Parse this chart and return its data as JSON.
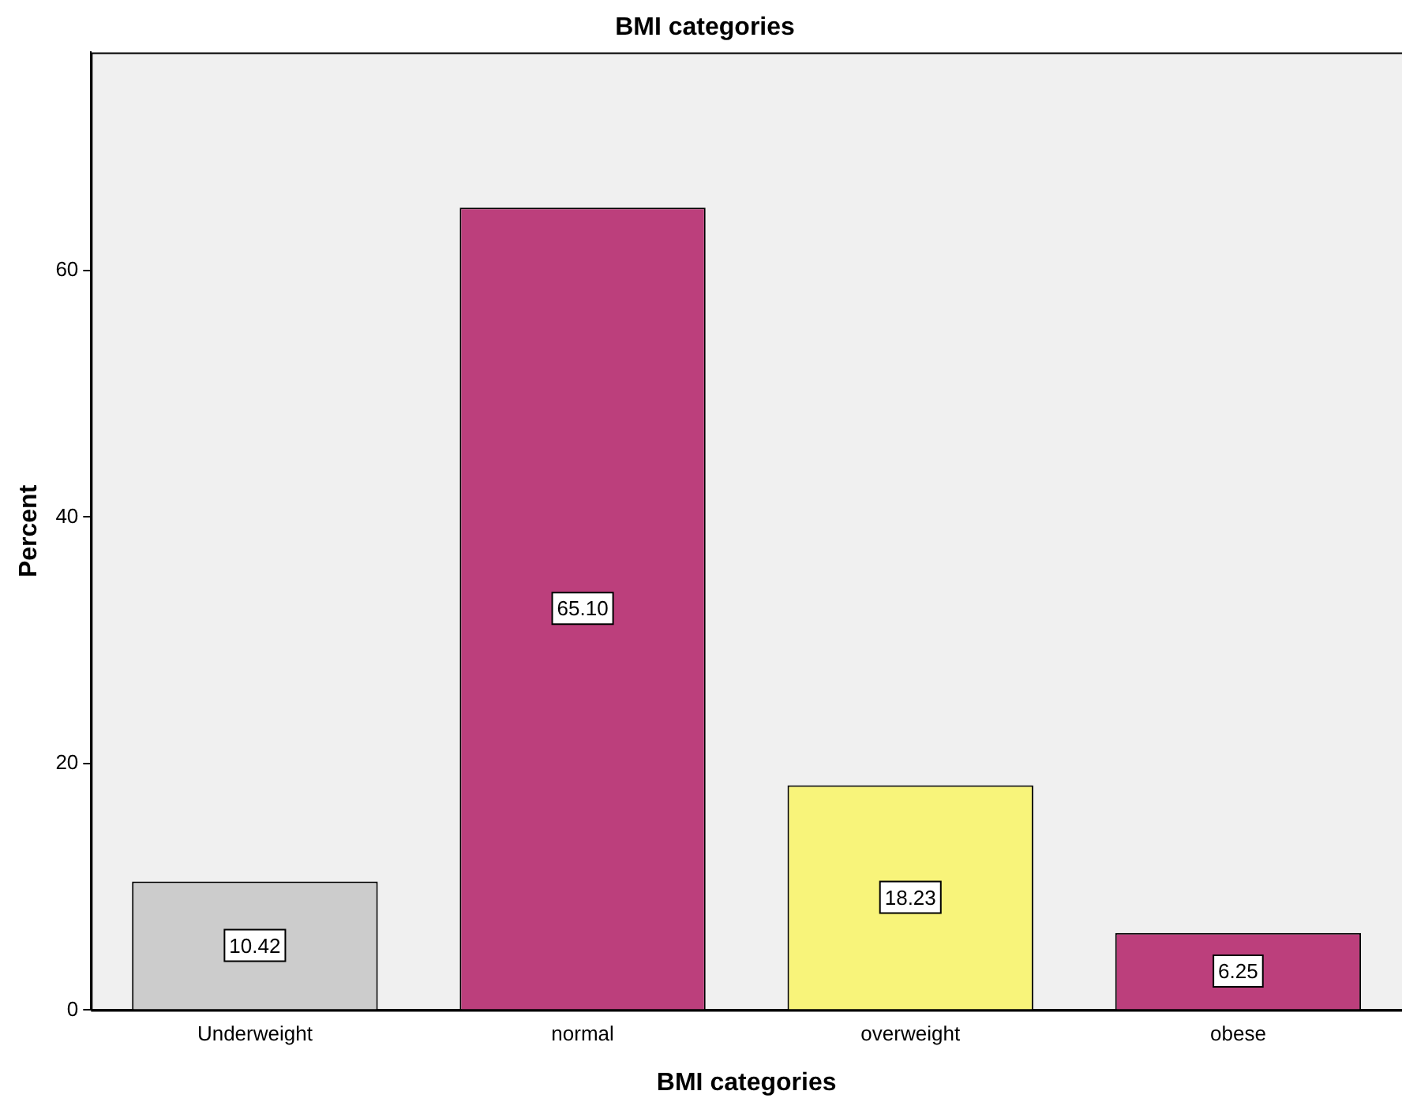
{
  "chart_data": {
    "type": "bar",
    "title": "BMI categories",
    "xlabel": "BMI categories",
    "ylabel": "Percent",
    "categories": [
      "Underweight",
      "normal",
      "overweight",
      "obese"
    ],
    "values": [
      10.42,
      65.1,
      18.23,
      6.25
    ],
    "value_labels": [
      "10.42",
      "65.10",
      "18.23",
      "6.25"
    ],
    "colors": [
      "#cccccc",
      "#bc3f7c",
      "#f8f47a",
      "#bc3f7c"
    ],
    "ylim": [
      0,
      77.7
    ],
    "yticks": [
      0,
      20,
      40,
      60
    ],
    "grid": false,
    "legend": false
  }
}
